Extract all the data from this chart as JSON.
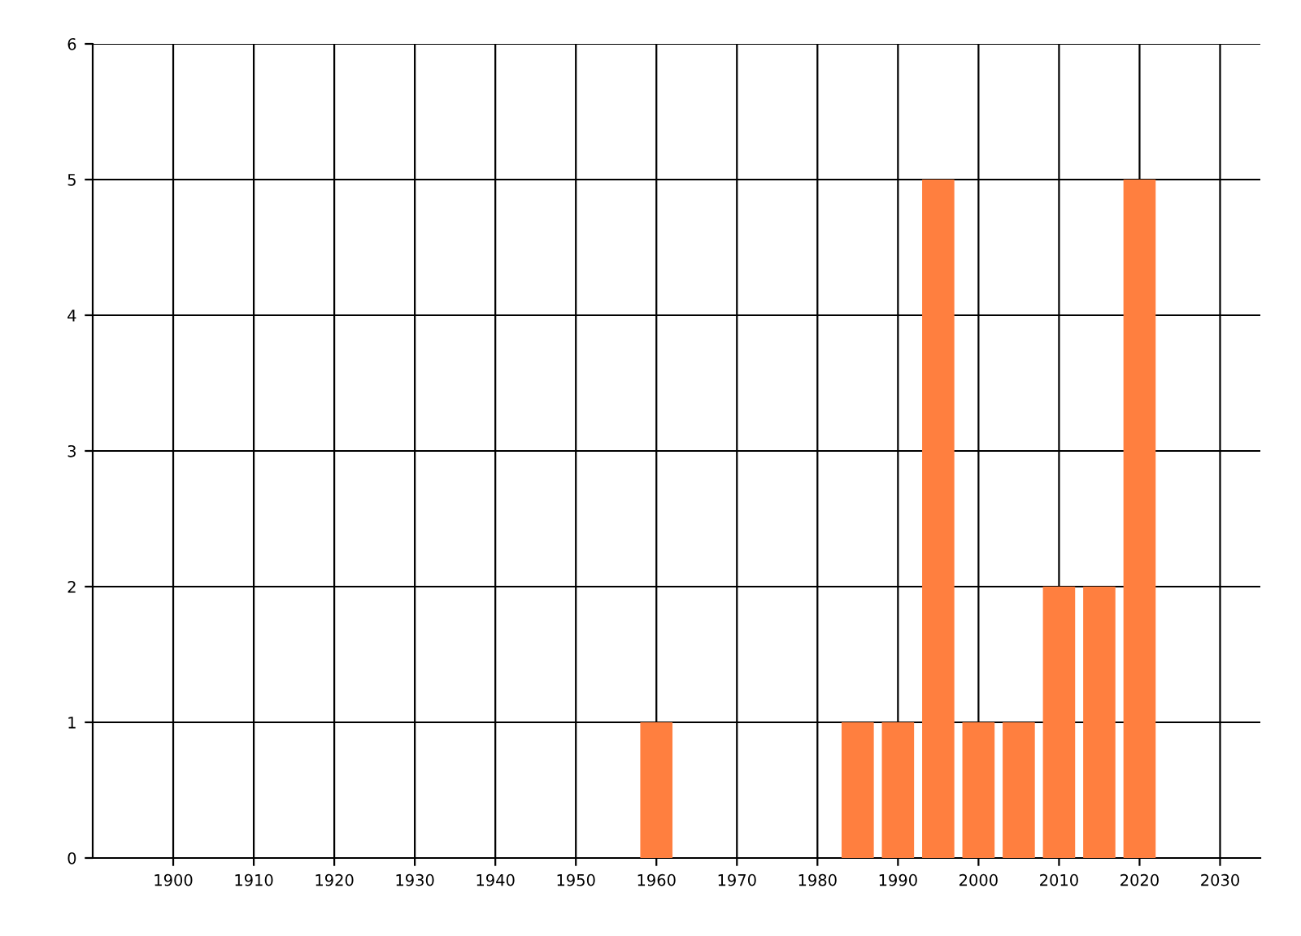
{
  "chart_data": {
    "type": "bar",
    "x": [
      1960,
      1985,
      1990,
      1995,
      2000,
      2005,
      2010,
      2015,
      2020
    ],
    "values": [
      1,
      1,
      1,
      5,
      1,
      1,
      2,
      2,
      5
    ],
    "color": "#ff7f3f",
    "xlim": [
      1890,
      2035
    ],
    "xticks": [
      1900,
      1910,
      1920,
      1930,
      1940,
      1950,
      1960,
      1970,
      1980,
      1990,
      2000,
      2010,
      2020,
      2030
    ],
    "ylim": [
      0,
      6
    ],
    "yticks": [
      0,
      1,
      2,
      3,
      4,
      5,
      6
    ],
    "grid": true
  }
}
